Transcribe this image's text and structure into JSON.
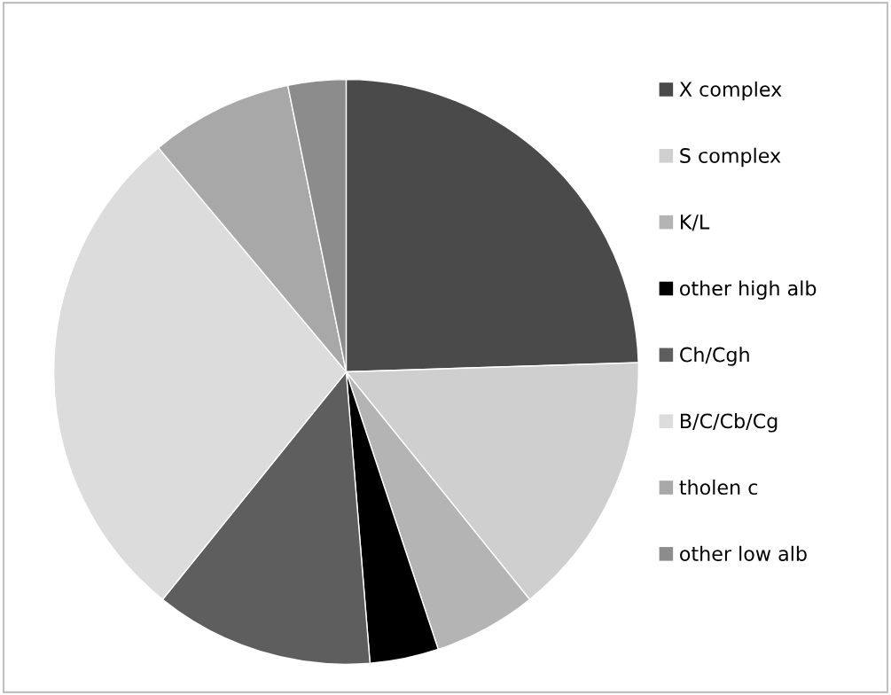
{
  "chart_data": {
    "type": "pie",
    "categories": [
      "X complex",
      "S complex",
      "K/L",
      "other high alb",
      "Ch/Cgh",
      "B/C/Cb/Cg",
      "tholen c",
      "other low alb"
    ],
    "values": [
      24.5,
      14.7,
      5.7,
      3.8,
      12.1,
      28.1,
      7.9,
      3.2
    ],
    "colors": [
      "#4a4a4a",
      "#cfcfcf",
      "#b4b4b4",
      "#000000",
      "#5e5e5e",
      "#dcdcdc",
      "#a8a8a8",
      "#8c8c8c"
    ],
    "legend": "right"
  }
}
